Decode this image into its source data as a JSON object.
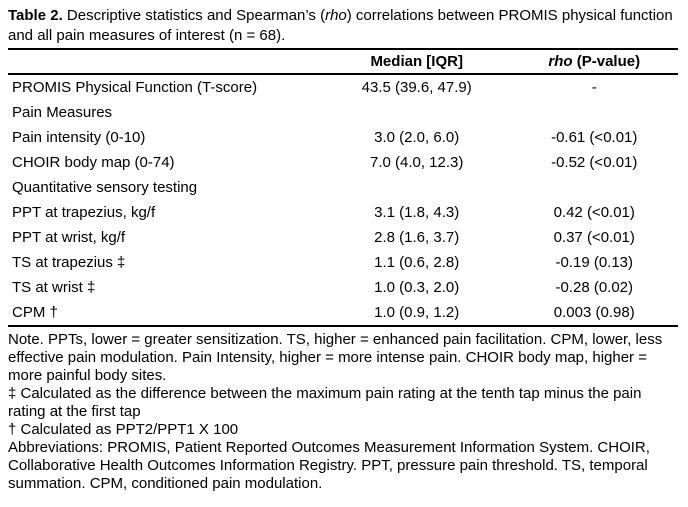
{
  "caption": {
    "label": "Table 2.",
    "pre": "  Descriptive statistics and Spearman’s (",
    "italic": "rho",
    "post": ") correlations between PROMIS physical function and all pain measures of interest (n = 68)."
  },
  "header": {
    "median": "Median [IQR]",
    "rho_italic": "rho",
    "rho_rest": " (P-value)"
  },
  "rows": [
    {
      "label": "PROMIS Physical Function (T-score)",
      "median": "43.5 (39.6, 47.9)",
      "rho": "-"
    },
    {
      "label": "Pain Measures",
      "median": "",
      "rho": ""
    },
    {
      "label": "Pain intensity (0-10)",
      "median": "3.0 (2.0, 6.0)",
      "rho": "-0.61 (<0.01)"
    },
    {
      "label": "CHOIR body map (0-74)",
      "median": "7.0 (4.0, 12.3)",
      "rho": "-0.52 (<0.01)"
    },
    {
      "label": "Quantitative sensory testing",
      "median": "",
      "rho": ""
    },
    {
      "label": "PPT at trapezius, kg/f",
      "median": "3.1 (1.8, 4.3)",
      "rho": "0.42 (<0.01)"
    },
    {
      "label": "PPT at wrist, kg/f",
      "median": "2.8 (1.6, 3.7)",
      "rho": "0.37 (<0.01)"
    },
    {
      "label": "TS at trapezius ‡",
      "median": "1.1 (0.6, 2.8)",
      "rho": "-0.19 (0.13)"
    },
    {
      "label": "TS at wrist ‡",
      "median": "1.0 (0.3, 2.0)",
      "rho": "-0.28 (0.02)"
    },
    {
      "label": "CPM †",
      "median": "1.0 (0.9, 1.2)",
      "rho": "0.003 (0.98)"
    }
  ],
  "notes": [
    "Note. PPTs, lower = greater sensitization. TS, higher = enhanced pain facilitation. CPM, lower, less effective pain modulation.  Pain Intensity, higher = more intense pain.  CHOIR body map, higher = more painful body sites.",
    "‡ Calculated as the difference between the maximum pain rating at the tenth tap minus the pain rating at the first tap",
    "† Calculated as PPT2/PPT1 X 100",
    "Abbreviations: PROMIS, Patient Reported Outcomes Measurement Information System. CHOIR, Collaborative Health Outcomes Information Registry. PPT, pressure pain threshold. TS, temporal summation. CPM, conditioned pain modulation."
  ]
}
